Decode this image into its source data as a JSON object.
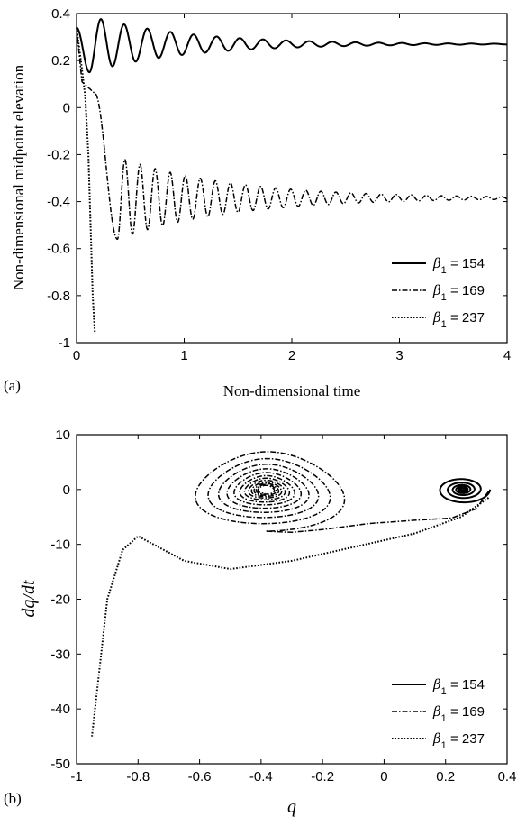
{
  "chart_data": [
    {
      "type": "line",
      "panel_label": "(a)",
      "xlabel": "Non-dimensional time",
      "ylabel": "Non-dimensional midpoint elevation",
      "xlim": [
        0,
        4
      ],
      "ylim": [
        -1,
        0.4
      ],
      "xticks": [
        "0",
        "1",
        "2",
        "3",
        "4"
      ],
      "yticks": [
        "0.4",
        "0.2",
        "0",
        "-0.2",
        "-0.4",
        "-0.6",
        "-0.8",
        "-1"
      ],
      "legend_position": "bottom-right",
      "grid": false,
      "series": [
        {
          "name": "154",
          "style": "solid",
          "equilibrium": 0.27,
          "x0": 0,
          "y0": 0.34,
          "dip": 0.15,
          "dip_t": 0.12
        },
        {
          "name": "169",
          "style": "dashdot",
          "equilibrium": -0.385,
          "x0": 0,
          "y0": 0.34,
          "min": -0.56,
          "min_t": 0.38
        },
        {
          "name": "237",
          "style": "dotted",
          "x": [
            0,
            0.04,
            0.08,
            0.11,
            0.13,
            0.15,
            0.17
          ],
          "y": [
            0.34,
            0.2,
            0.05,
            -0.2,
            -0.5,
            -0.8,
            -0.96
          ]
        }
      ]
    },
    {
      "type": "line",
      "panel_label": "(b)",
      "xlabel": "q",
      "ylabel": "dq/dt",
      "xlim": [
        -1,
        0.4
      ],
      "ylim": [
        -50,
        10
      ],
      "xticks": [
        "-1",
        "-0.8",
        "-0.6",
        "-0.4",
        "-0.2",
        "0",
        "0.2",
        "0.4"
      ],
      "yticks": [
        "10",
        "0",
        "-10",
        "-20",
        "-30",
        "-40",
        "-50"
      ],
      "legend_position": "bottom-right",
      "grid": false,
      "series": [
        {
          "name": "154",
          "style": "solid",
          "center": [
            0.255,
            0
          ],
          "max_radius_q": 0.09,
          "max_radius_v": 2.6
        },
        {
          "name": "169",
          "style": "dashdot",
          "center": [
            -0.385,
            0
          ],
          "max_radius_q": 0.26,
          "max_radius_v": 7.6
        },
        {
          "name": "237",
          "style": "dotted",
          "q": [
            0.34,
            0.25,
            0.1,
            -0.1,
            -0.3,
            -0.5,
            -0.65,
            -0.75,
            -0.8,
            -0.85,
            -0.9,
            -0.93,
            -0.95
          ],
          "dqdt": [
            -1.5,
            -5,
            -8,
            -10.5,
            -13,
            -14.5,
            -13,
            -10,
            -8.5,
            -11,
            -20,
            -35,
            -45
          ]
        }
      ]
    }
  ],
  "legend": {
    "symbol": "β",
    "subscript": "1",
    "equals": " = "
  }
}
